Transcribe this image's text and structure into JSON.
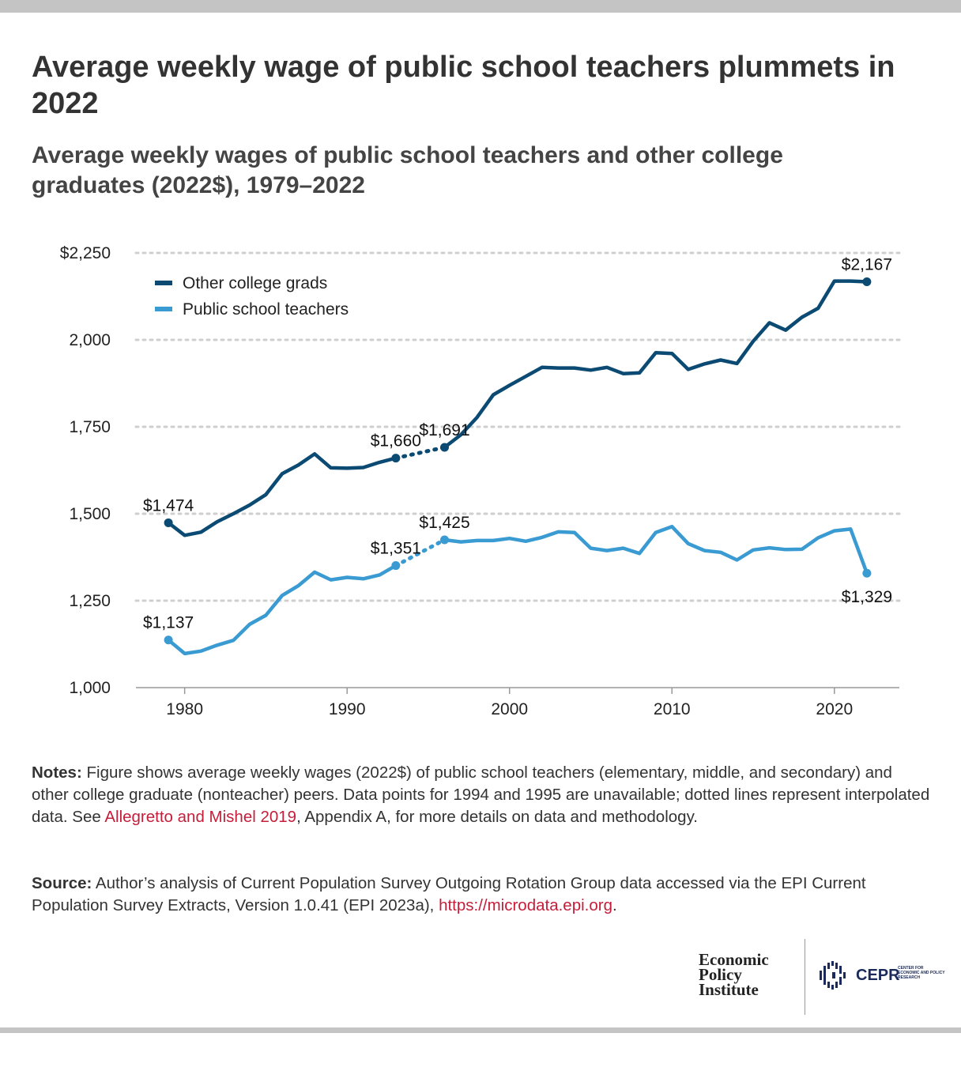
{
  "title": "Average weekly wage of public school teachers plummets in 2022",
  "subtitle": "Average weekly wages of public school teachers and other college graduates (2022$), 1979–2022",
  "chart_data": {
    "type": "line",
    "xlim": [
      1977,
      2024
    ],
    "ylim": [
      1000,
      2250
    ],
    "x_ticks": [
      1980,
      1990,
      2000,
      2010,
      2020
    ],
    "y_ticks": [
      1000,
      1250,
      1500,
      1750,
      2000,
      2250
    ],
    "y_tick_labels": [
      "1,000",
      "1,250",
      "1,500",
      "1,750",
      "2,000",
      "$2,250"
    ],
    "grid": "horizontal dotted",
    "legend_position": "top-left",
    "interpolated_years": [
      1994,
      1995
    ],
    "series": [
      {
        "name": "Other college grads",
        "color": "#0b4a72",
        "x": [
          1979,
          1980,
          1981,
          1982,
          1983,
          1984,
          1985,
          1986,
          1987,
          1988,
          1989,
          1990,
          1991,
          1992,
          1993,
          1996,
          1997,
          1998,
          1999,
          2000,
          2001,
          2002,
          2003,
          2004,
          2005,
          2006,
          2007,
          2008,
          2009,
          2010,
          2011,
          2012,
          2013,
          2014,
          2015,
          2016,
          2017,
          2018,
          2019,
          2020,
          2021,
          2022
        ],
        "y": [
          1474,
          1438,
          1447,
          1477,
          1500,
          1525,
          1555,
          1615,
          1640,
          1672,
          1632,
          1631,
          1633,
          1648,
          1660,
          1691,
          1727,
          1777,
          1842,
          1869,
          1895,
          1921,
          1919,
          1919,
          1913,
          1921,
          1903,
          1905,
          1963,
          1961,
          1915,
          1931,
          1942,
          1932,
          1996,
          2049,
          2028,
          2065,
          2091,
          2169,
          2169,
          2167
        ],
        "labels": [
          {
            "x": 1979,
            "y": 1474,
            "text": "$1,474",
            "position": "above"
          },
          {
            "x": 1993,
            "y": 1660,
            "text": "$1,660",
            "position": "above"
          },
          {
            "x": 1996,
            "y": 1691,
            "text": "$1,691",
            "position": "above"
          },
          {
            "x": 2022,
            "y": 2167,
            "text": "$2,167",
            "position": "above"
          }
        ]
      },
      {
        "name": "Public school teachers",
        "color": "#3a9ad2",
        "x": [
          1979,
          1980,
          1981,
          1982,
          1983,
          1984,
          1985,
          1986,
          1987,
          1988,
          1989,
          1990,
          1991,
          1992,
          1993,
          1996,
          1997,
          1998,
          1999,
          2000,
          2001,
          2002,
          2003,
          2004,
          2005,
          2006,
          2007,
          2008,
          2009,
          2010,
          2011,
          2012,
          2013,
          2014,
          2015,
          2016,
          2017,
          2018,
          2019,
          2020,
          2021,
          2022
        ],
        "y": [
          1137,
          1098,
          1105,
          1122,
          1136,
          1182,
          1208,
          1265,
          1293,
          1332,
          1310,
          1317,
          1313,
          1324,
          1351,
          1425,
          1419,
          1423,
          1423,
          1429,
          1421,
          1432,
          1448,
          1446,
          1401,
          1394,
          1401,
          1386,
          1446,
          1463,
          1414,
          1394,
          1389,
          1367,
          1396,
          1402,
          1397,
          1398,
          1431,
          1451,
          1456,
          1329
        ],
        "labels": [
          {
            "x": 1979,
            "y": 1137,
            "text": "$1,137",
            "position": "above"
          },
          {
            "x": 1993,
            "y": 1351,
            "text": "$1,351",
            "position": "above"
          },
          {
            "x": 1996,
            "y": 1425,
            "text": "$1,425",
            "position": "above"
          },
          {
            "x": 2022,
            "y": 1329,
            "text": "$1,329",
            "position": "below"
          }
        ]
      }
    ]
  },
  "notes": {
    "label": "Notes:",
    "text_before_link": " Figure shows average weekly wages (2022$) of public school teachers (elementary, middle, and secondary) and other college graduate (nonteacher) peers. Data points for 1994 and 1995 are unavailable; dotted lines represent interpolated data. See ",
    "link": "Allegretto and Mishel 2019",
    "text_after_link": ", Appendix A, for more details on data and methodology."
  },
  "source": {
    "label": "Source:",
    "text_before_link": " Author’s analysis of Current Population Survey Outgoing Rotation Group data accessed via the EPI Current Population Survey Extracts, Version 1.0.41 (EPI 2023a), ",
    "link": "https://microdata.epi.org",
    "text_after_link": "."
  },
  "logos": {
    "epi_line1": "Economic",
    "epi_line2": "Policy",
    "epi_line3": "Institute",
    "cepr": "CEPR",
    "cepr_tag": "CENTER FOR ECONOMIC AND POLICY RESEARCH"
  }
}
